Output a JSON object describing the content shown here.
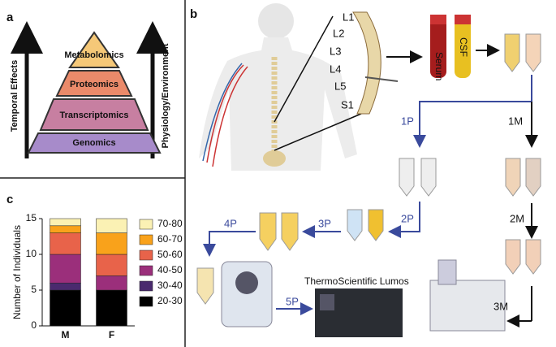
{
  "panel_labels": [
    "a",
    "b",
    "c"
  ],
  "panel_a": {
    "layers": [
      "Metabolomics",
      "Proteomics",
      "Transcriptomics",
      "Genomics"
    ],
    "left_arrow": "Temporal Effects",
    "right_arrow": "Physiology/Environment"
  },
  "panel_b": {
    "vertebrae": [
      "L1",
      "L2",
      "L3",
      "L4",
      "L5",
      "S1"
    ],
    "tubes": [
      "Serum",
      "CSF"
    ],
    "steps": [
      "1P",
      "1M",
      "2P",
      "2M",
      "3P",
      "4P",
      "5P",
      "3M"
    ],
    "instrument": "ThermoScientific Lumos"
  },
  "chart_data": {
    "type": "stacked-bar",
    "y_label": "Number of Individuals",
    "categories": [
      "M",
      "F"
    ],
    "series": [
      {
        "name": "20-30",
        "color": "#000000",
        "values": [
          5,
          5
        ]
      },
      {
        "name": "30-40",
        "color": "#4a2a6e",
        "values": [
          1,
          0
        ]
      },
      {
        "name": "40-50",
        "color": "#9b2f7b",
        "values": [
          4,
          2
        ]
      },
      {
        "name": "50-60",
        "color": "#e8634a",
        "values": [
          3,
          3
        ]
      },
      {
        "name": "60-70",
        "color": "#f9a21b",
        "values": [
          1,
          3
        ]
      },
      {
        "name": "70-80",
        "color": "#fbf1b4",
        "values": [
          1,
          2
        ]
      }
    ],
    "ylim": [
      0,
      15
    ],
    "yticks": [
      0,
      5,
      10,
      15
    ]
  }
}
